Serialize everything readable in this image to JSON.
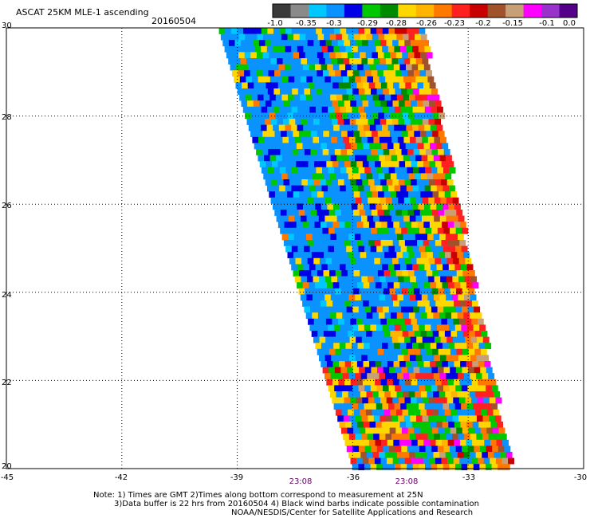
{
  "header": {
    "title": "ASCAT 25KM MLE-1 ascending",
    "date": "20160504"
  },
  "colorbar": {
    "colors": [
      "#3a3a3a",
      "#8a8a8a",
      "#00c8ff",
      "#0a92ff",
      "#0000e6",
      "#00c800",
      "#008a00",
      "#ffd700",
      "#ffb400",
      "#ff7800",
      "#ff2020",
      "#c80000",
      "#a0522d",
      "#c8a078",
      "#ff00ff",
      "#9932cc",
      "#550088"
    ],
    "labels": [
      "-1.0",
      "-0.35",
      "-0.3",
      "-0.29",
      "-0.28",
      "-0.26",
      "-0.23",
      "-0.2",
      "-0.15",
      "-0.1",
      "0.0"
    ]
  },
  "axes": {
    "x_ticks": [
      "-45",
      "-42",
      "-39",
      "-36",
      "-33",
      "-30"
    ],
    "y_ticks": [
      "30",
      "28",
      "26",
      "24",
      "22",
      "20"
    ]
  },
  "times": [
    "23:08",
    "23:08"
  ],
  "notes": {
    "line1": "Note: 1) Times are GMT 2)Times along bottom correspond to measurement at 25N",
    "line2": "3)Data buffer is 22 hrs from 20160504 4) Black wind barbs indicate possible contamination",
    "line3": "NOAA/NESDIS/Center for Satellite Applications and Research"
  },
  "map": {
    "lon_range": [
      -45,
      -30
    ],
    "lat_range": [
      20,
      30
    ],
    "swath": {
      "lon_west_at_lat20": -36.0,
      "lon_west_at_lat30": -39.5,
      "lon_east_at_lat20": -31.9,
      "lon_east_at_lat30": -34.2
    },
    "grid": "dotted"
  }
}
